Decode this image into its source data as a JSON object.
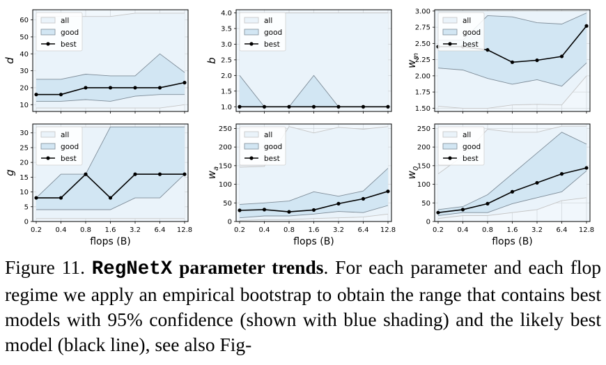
{
  "xticks": [
    "0.2",
    "0.4",
    "0.8",
    "1.6",
    "3.2",
    "6.4",
    "12.8"
  ],
  "legend": {
    "all": "all",
    "good": "good",
    "best": "best"
  },
  "colors": {
    "all_fill": "#eaf3fa",
    "all_line": "#c4c4c4",
    "good_fill": "#d2e6f3",
    "good_line": "#7d8b97",
    "best": "#000000",
    "axes_bg": "#f1f7fc",
    "grid": "#d3d8dc"
  },
  "chart_data": [
    {
      "type": "line",
      "ylabel": "d",
      "xlabel": "",
      "ylim": [
        6,
        66
      ],
      "yticks": [
        10,
        20,
        30,
        40,
        50,
        60
      ],
      "x": [
        0.2,
        0.4,
        0.8,
        1.6,
        3.2,
        6.4,
        12.8
      ],
      "series": [
        {
          "name": "all",
          "low": [
            8,
            8,
            8,
            8,
            8,
            8,
            10
          ],
          "high": [
            62,
            62,
            62,
            62,
            64,
            64,
            64
          ]
        },
        {
          "name": "good",
          "low": [
            12,
            12,
            13,
            12,
            15,
            16,
            16
          ],
          "high": [
            25,
            25,
            28,
            27,
            27,
            40,
            29
          ]
        },
        {
          "name": "best",
          "values": [
            16,
            16,
            20,
            20,
            20,
            20,
            23
          ]
        }
      ]
    },
    {
      "type": "line",
      "ylabel": "b",
      "xlabel": "",
      "ylim": [
        0.85,
        4.1
      ],
      "yticks": [
        1.0,
        1.5,
        2.0,
        2.5,
        3.0,
        3.5,
        4.0
      ],
      "ytick_decimals": 1,
      "x": [
        0.2,
        0.4,
        0.8,
        1.6,
        3.2,
        6.4,
        12.8
      ],
      "series": [
        {
          "name": "all",
          "low": [
            1,
            1,
            1,
            1,
            1,
            1,
            1
          ],
          "high": [
            4,
            4,
            4,
            4,
            4,
            4,
            4
          ]
        },
        {
          "name": "good",
          "low": [
            1,
            1,
            1,
            1,
            1,
            1,
            1
          ],
          "high": [
            2,
            1,
            1,
            2,
            1,
            1,
            1
          ]
        },
        {
          "name": "best",
          "values": [
            1,
            1,
            1,
            1,
            1,
            1,
            1
          ]
        }
      ]
    },
    {
      "type": "line",
      "ylabel": "w_m",
      "xlabel": "",
      "ylim": [
        1.45,
        3.02
      ],
      "yticks": [
        1.5,
        1.75,
        2.0,
        2.25,
        2.5,
        2.75,
        3.0
      ],
      "ytick_decimals": 2,
      "x": [
        0.2,
        0.4,
        0.8,
        1.6,
        3.2,
        6.4,
        12.8
      ],
      "series": [
        {
          "name": "all",
          "low": [
            1.53,
            1.5,
            1.5,
            1.55,
            1.56,
            1.55,
            2.0
          ],
          "high": [
            3.0,
            3.0,
            3.0,
            3.0,
            3.0,
            3.0,
            3.0
          ]
        },
        {
          "name": "good",
          "low": [
            2.12,
            2.09,
            1.96,
            1.87,
            1.94,
            1.84,
            2.2
          ],
          "high": [
            2.55,
            2.55,
            2.93,
            2.91,
            2.82,
            2.8,
            2.97
          ]
        },
        {
          "name": "best",
          "values": [
            2.45,
            2.45,
            2.4,
            2.21,
            2.24,
            2.3,
            2.77
          ]
        }
      ]
    },
    {
      "type": "line",
      "ylabel": "g",
      "xlabel": "flops (B)",
      "ylim": [
        0,
        33
      ],
      "yticks": [
        0,
        5,
        10,
        15,
        20,
        25,
        30
      ],
      "x": [
        0.2,
        0.4,
        0.8,
        1.6,
        3.2,
        6.4,
        12.8
      ],
      "series": [
        {
          "name": "all",
          "low": [
            1,
            1,
            1,
            1,
            1,
            1,
            1
          ],
          "high": [
            32,
            32,
            32,
            32,
            32,
            32,
            32
          ]
        },
        {
          "name": "good",
          "low": [
            4,
            4,
            4,
            4,
            8,
            8,
            16
          ],
          "high": [
            8,
            16,
            16,
            32,
            32,
            32,
            32
          ]
        },
        {
          "name": "best",
          "values": [
            8,
            8,
            16,
            8,
            16,
            16,
            16
          ]
        }
      ]
    },
    {
      "type": "line",
      "ylabel": "w_a",
      "xlabel": "flops (B)",
      "ylim": [
        0,
        262
      ],
      "yticks": [
        0,
        50,
        100,
        150,
        200,
        250
      ],
      "x": [
        0.2,
        0.4,
        0.8,
        1.6,
        3.2,
        6.4,
        12.8
      ],
      "series": [
        {
          "name": "all",
          "low": [
            3,
            5,
            5,
            8,
            10,
            12,
            20
          ],
          "high": [
            146,
            148,
            255,
            238,
            253,
            248,
            255
          ]
        },
        {
          "name": "good",
          "low": [
            10,
            15,
            15,
            20,
            27,
            24,
            43
          ],
          "high": [
            46,
            50,
            55,
            80,
            68,
            82,
            143
          ]
        },
        {
          "name": "best",
          "values": [
            30,
            32,
            26,
            31,
            48,
            61,
            81
          ]
        }
      ]
    },
    {
      "type": "line",
      "ylabel": "w_0",
      "xlabel": "flops (B)",
      "ylim": [
        0,
        262
      ],
      "yticks": [
        0,
        50,
        100,
        150,
        200,
        250
      ],
      "x": [
        0.2,
        0.4,
        0.8,
        1.6,
        3.2,
        6.4,
        12.8
      ],
      "series": [
        {
          "name": "all",
          "low": [
            8,
            16,
            16,
            24,
            32,
            56,
            64
          ],
          "high": [
            128,
            176,
            248,
            240,
            240,
            256,
            256
          ]
        },
        {
          "name": "good",
          "low": [
            16,
            24,
            24,
            48,
            64,
            80,
            136
          ],
          "high": [
            32,
            40,
            72,
            128,
            184,
            240,
            208
          ]
        },
        {
          "name": "best",
          "values": [
            24,
            32,
            48,
            80,
            104,
            128,
            144
          ]
        }
      ]
    }
  ],
  "caption": {
    "label": "Figure 11.",
    "code": "RegNetX",
    "title_rest": "parameter trends",
    "body": ". For each parameter and each flop regime we apply an empirical bootstrap to obtain the range that contains best models with 95% confidence (shown with blue shading) and the likely best model (black line), see also Fig-"
  }
}
